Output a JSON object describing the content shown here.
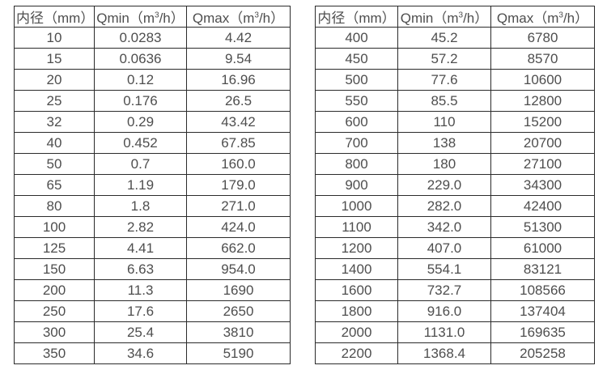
{
  "page": {
    "background_color": "#ffffff",
    "text_color": "#4e4e4e",
    "border_color": "#2b2b2b"
  },
  "tables": [
    {
      "id": "flow-table-small-diameters",
      "header": {
        "diameter": "内径（mm）",
        "qmin": {
          "pre": "Qmin（m",
          "sup": "3",
          "post": "/h）"
        },
        "qmax": {
          "pre": "Qmax（m",
          "sup": "3",
          "post": "/h）"
        }
      },
      "rows": [
        [
          "10",
          "0.0283",
          "4.42"
        ],
        [
          "15",
          "0.0636",
          "9.54"
        ],
        [
          "20",
          "0.12",
          "16.96"
        ],
        [
          "25",
          "0.176",
          "26.5"
        ],
        [
          "32",
          "0.29",
          "43.42"
        ],
        [
          "40",
          "0.452",
          "67.85"
        ],
        [
          "50",
          "0.7",
          "160.0"
        ],
        [
          "65",
          "1.19",
          "179.0"
        ],
        [
          "80",
          "1.8",
          "271.0"
        ],
        [
          "100",
          "2.82",
          "424.0"
        ],
        [
          "125",
          "4.41",
          "662.0"
        ],
        [
          "150",
          "6.63",
          "954.0"
        ],
        [
          "200",
          "11.3",
          "1690"
        ],
        [
          "250",
          "17.6",
          "2650"
        ],
        [
          "300",
          "25.4",
          "3810"
        ],
        [
          "350",
          "34.6",
          "5190"
        ]
      ]
    },
    {
      "id": "flow-table-large-diameters",
      "header": {
        "diameter": "内径（mm）",
        "qmin": {
          "pre": "Qmin（m",
          "sup": "3",
          "post": "/h）"
        },
        "qmax": {
          "pre": "Qmax（m",
          "sup": "3",
          "post": "/h）"
        }
      },
      "rows": [
        [
          "400",
          "45.2",
          "6780"
        ],
        [
          "450",
          "57.2",
          "8570"
        ],
        [
          "500",
          "77.6",
          "10600"
        ],
        [
          "550",
          "85.5",
          "12800"
        ],
        [
          "600",
          "110",
          "15200"
        ],
        [
          "700",
          "138",
          "20700"
        ],
        [
          "800",
          "180",
          "27100"
        ],
        [
          "900",
          "229.0",
          "34300"
        ],
        [
          "1000",
          "282.0",
          "42400"
        ],
        [
          "1100",
          "342.0",
          "51300"
        ],
        [
          "1200",
          "407.0",
          "61000"
        ],
        [
          "1400",
          "554.1",
          "83121"
        ],
        [
          "1600",
          "732.7",
          "108566"
        ],
        [
          "1800",
          "916.0",
          "137404"
        ],
        [
          "2000",
          "1131.0",
          "169635"
        ],
        [
          "2200",
          "1368.4",
          "205258"
        ]
      ]
    }
  ]
}
